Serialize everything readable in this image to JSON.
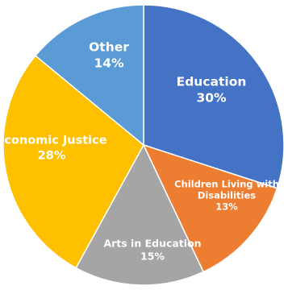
{
  "chart_data": {
    "type": "pie",
    "start": "top",
    "direction": "clockwise",
    "slices": [
      {
        "label_lines": [
          "Education"
        ],
        "value": 30,
        "value_label": "30%",
        "color": "#4472C4"
      },
      {
        "label_lines": [
          "Children Living with",
          "Disabilities"
        ],
        "value": 13,
        "value_label": "13%",
        "color": "#ED7D31"
      },
      {
        "label_lines": [
          "Arts in Education"
        ],
        "value": 15,
        "value_label": "15%",
        "color": "#A5A5A5"
      },
      {
        "label_lines": [
          "Economic Justice"
        ],
        "value": 28,
        "value_label": "28%",
        "color": "#FFC000"
      },
      {
        "label_lines": [
          "Other"
        ],
        "value": 14,
        "value_label": "14%",
        "color": "#5B9BD5"
      }
    ]
  }
}
